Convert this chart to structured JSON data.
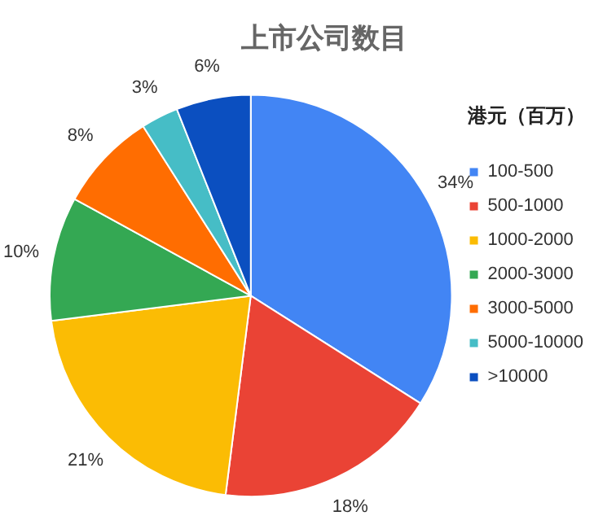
{
  "chart_data": {
    "type": "pie",
    "title": "上市公司数目",
    "legend_title": "港元（百万）",
    "categories": [
      "100-500",
      "500-1000",
      "1000-2000",
      "2000-3000",
      "3000-5000",
      "5000-10000",
      ">10000"
    ],
    "values": [
      34,
      18,
      21,
      10,
      8,
      3,
      6
    ],
    "colors": [
      "#4285f4",
      "#ea4335",
      "#fbbc04",
      "#34a853",
      "#ff6d01",
      "#46bdc6",
      "#0b4fc0"
    ],
    "value_labels": [
      "34%",
      "18%",
      "21%",
      "10%",
      "8%",
      "3%",
      "6%"
    ],
    "legend": "right"
  }
}
